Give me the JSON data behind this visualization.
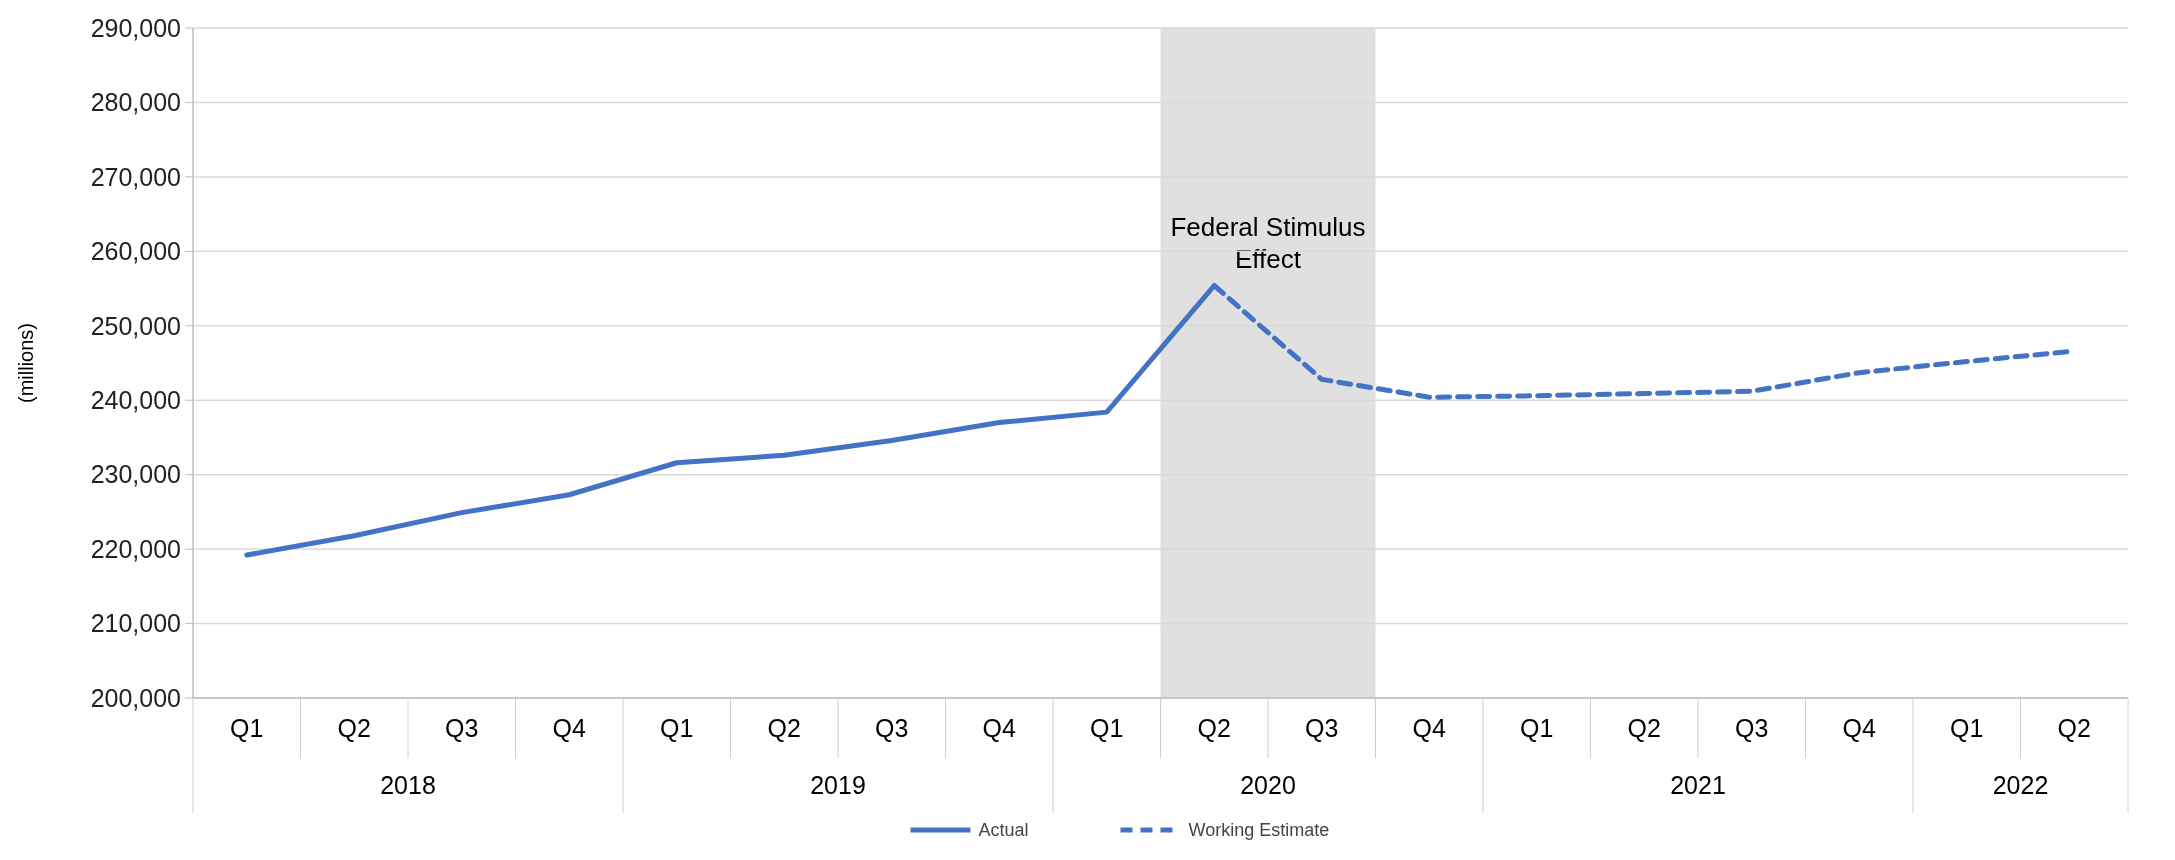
{
  "chart_data": {
    "type": "line",
    "ylabel": "(millions)",
    "categories": [
      "Q1",
      "Q2",
      "Q3",
      "Q4",
      "Q1",
      "Q2",
      "Q3",
      "Q4",
      "Q1",
      "Q2",
      "Q3",
      "Q4",
      "Q1",
      "Q2",
      "Q3",
      "Q4",
      "Q1",
      "Q2"
    ],
    "series": [
      {
        "name": "Actual",
        "color": "#4472c4",
        "line_style": "solid",
        "values": [
          219200,
          221800,
          224900,
          227300,
          231600,
          232600,
          234600,
          237000,
          238400,
          255400,
          null,
          null,
          null,
          null,
          null,
          null,
          null,
          null
        ]
      },
      {
        "name": "Working Estimate",
        "color": "#4472c4",
        "line_style": "dashed",
        "values": [
          null,
          null,
          null,
          null,
          null,
          null,
          null,
          null,
          null,
          255400,
          242800,
          240400,
          240600,
          240900,
          241200,
          243700,
          245200,
          246600
        ]
      }
    ],
    "ylim": [
      200000,
      290000
    ],
    "yticks": [
      {
        "value": 200000,
        "label": "200,000"
      },
      {
        "value": 210000,
        "label": "210,000"
      },
      {
        "value": 220000,
        "label": "220,000"
      },
      {
        "value": 230000,
        "label": "230,000"
      },
      {
        "value": 240000,
        "label": "240,000"
      },
      {
        "value": 250000,
        "label": "250,000"
      },
      {
        "value": 260000,
        "label": "260,000"
      },
      {
        "value": 270000,
        "label": "270,000"
      },
      {
        "value": 280000,
        "label": "280,000"
      },
      {
        "value": 290000,
        "label": "290,000"
      }
    ],
    "annotations": [
      "Federal Stimulus Effect",
      "2018",
      "2019",
      "2020",
      "2021",
      "2022"
    ],
    "grid": "y",
    "legend": "bottom",
    "marker": "none"
  }
}
